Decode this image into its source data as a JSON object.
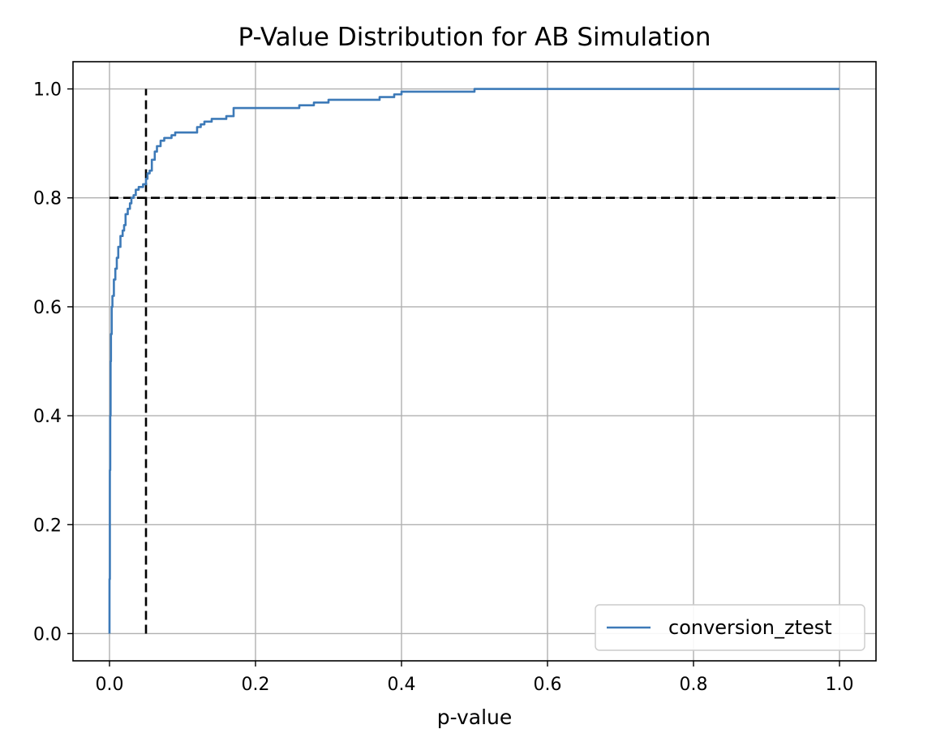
{
  "chart_data": {
    "type": "line",
    "title": "P-Value Distribution for AB Simulation",
    "xlabel": "p-value",
    "ylabel": "",
    "xlim": [
      -0.05,
      1.05
    ],
    "ylim": [
      -0.05,
      1.05
    ],
    "grid": true,
    "legend_position": "lower-right",
    "x_ticks": [
      0.0,
      0.2,
      0.4,
      0.6,
      0.8,
      1.0
    ],
    "x_tick_labels": [
      "0.0",
      "0.2",
      "0.4",
      "0.6",
      "0.8",
      "1.0"
    ],
    "y_ticks": [
      0.0,
      0.2,
      0.4,
      0.6,
      0.8,
      1.0
    ],
    "y_tick_labels": [
      "0.0",
      "0.2",
      "0.4",
      "0.6",
      "0.8",
      "1.0"
    ],
    "series": [
      {
        "name": "conversion_ztest",
        "color": "#3d7ab8",
        "step": true,
        "x": [
          0.0,
          0.0,
          0.0005,
          0.001,
          0.0015,
          0.002,
          0.003,
          0.004,
          0.006,
          0.008,
          0.01,
          0.012,
          0.015,
          0.018,
          0.02,
          0.022,
          0.025,
          0.028,
          0.03,
          0.033,
          0.036,
          0.04,
          0.043,
          0.046,
          0.05,
          0.052,
          0.055,
          0.058,
          0.062,
          0.065,
          0.07,
          0.075,
          0.08,
          0.085,
          0.09,
          0.1,
          0.11,
          0.12,
          0.125,
          0.13,
          0.14,
          0.16,
          0.17,
          0.2,
          0.22,
          0.24,
          0.26,
          0.28,
          0.3,
          0.32,
          0.35,
          0.37,
          0.39,
          0.4,
          0.45,
          0.5,
          1.0
        ],
        "y": [
          0.0,
          0.1,
          0.3,
          0.4,
          0.5,
          0.55,
          0.6,
          0.62,
          0.65,
          0.67,
          0.69,
          0.71,
          0.73,
          0.74,
          0.75,
          0.77,
          0.78,
          0.79,
          0.8,
          0.805,
          0.815,
          0.82,
          0.82,
          0.825,
          0.835,
          0.845,
          0.85,
          0.87,
          0.885,
          0.895,
          0.905,
          0.91,
          0.91,
          0.915,
          0.92,
          0.92,
          0.92,
          0.93,
          0.935,
          0.94,
          0.945,
          0.95,
          0.965,
          0.965,
          0.965,
          0.965,
          0.97,
          0.975,
          0.98,
          0.98,
          0.98,
          0.985,
          0.99,
          0.995,
          0.995,
          1.0,
          1.0
        ]
      }
    ],
    "reference_lines": [
      {
        "orientation": "vertical",
        "x": 0.05,
        "y": [
          0.0,
          1.0
        ],
        "color": "#000000",
        "style": "dashed"
      },
      {
        "orientation": "horizontal",
        "y": 0.8,
        "x": [
          0.0,
          1.0
        ],
        "color": "#000000",
        "style": "dashed"
      }
    ],
    "colors": {
      "grid": "#b0b0b0",
      "axes": "#000000",
      "legend_border": "#cccccc"
    }
  }
}
